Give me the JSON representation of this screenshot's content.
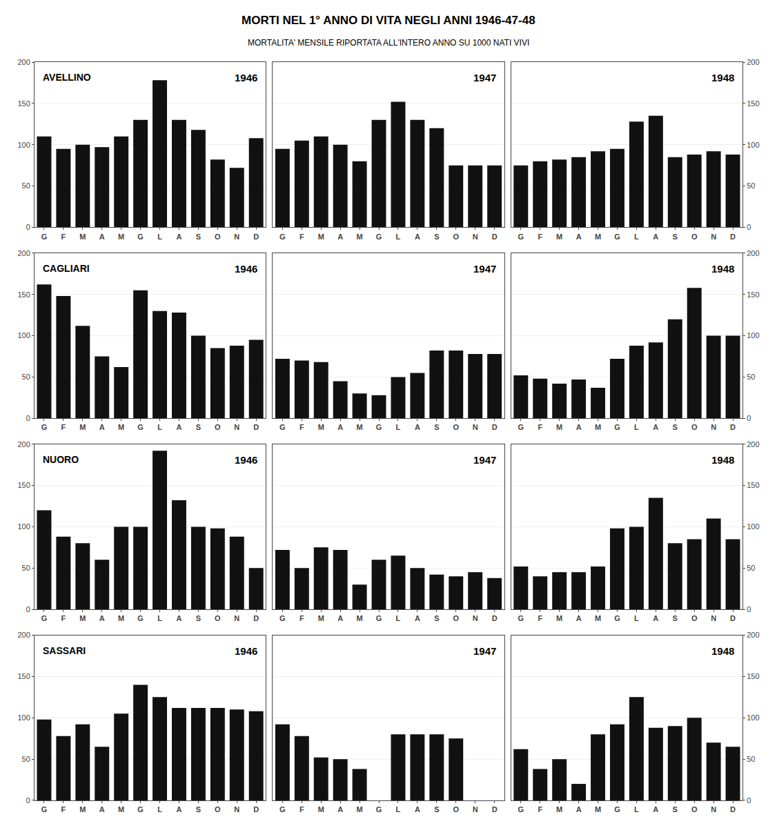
{
  "title": "MORTI NEL 1° ANNO DI VITA NEGLI ANNI 1946-47-48",
  "subtitle": "MORTALITA' MENSILE RIPORTATA ALL'INTERO ANNO SU 1000 NATI VIVI",
  "chart_data": [
    {
      "type": "bar",
      "title": "1946",
      "annotations": [
        "AVELLINO"
      ],
      "categories": [
        "G",
        "F",
        "M",
        "A",
        "M",
        "G",
        "L",
        "A",
        "S",
        "O",
        "N",
        "D"
      ],
      "values": [
        110,
        95,
        100,
        97,
        110,
        130,
        178,
        130,
        118,
        82,
        72,
        108
      ],
      "color": "#111111",
      "ylim": [
        0,
        200
      ],
      "yticks": [
        0,
        50,
        100,
        150,
        200
      ],
      "grid": true
    },
    {
      "type": "bar",
      "title": "1947",
      "categories": [
        "G",
        "F",
        "M",
        "A",
        "M",
        "G",
        "L",
        "A",
        "S",
        "O",
        "N",
        "D"
      ],
      "values": [
        95,
        105,
        110,
        100,
        80,
        130,
        152,
        130,
        120,
        75,
        75,
        75
      ],
      "color": "#111111",
      "ylim": [
        0,
        200
      ],
      "yticks": [
        0,
        50,
        100,
        150,
        200
      ],
      "grid": true,
      "tick_labels": "x"
    },
    {
      "type": "bar",
      "title": "1948",
      "categories": [
        "G",
        "F",
        "M",
        "A",
        "M",
        "G",
        "L",
        "A",
        "S",
        "O",
        "N",
        "D"
      ],
      "values": [
        75,
        80,
        82,
        85,
        92,
        95,
        128,
        135,
        85,
        88,
        92,
        88
      ],
      "color": "#111111",
      "ylim": [
        0,
        200
      ],
      "yticks": [
        0,
        50,
        100,
        150,
        200
      ],
      "grid": true
    },
    {
      "type": "bar",
      "title": "1946",
      "annotations": [
        "CAGLIARI"
      ],
      "categories": [
        "G",
        "F",
        "M",
        "A",
        "M",
        "G",
        "L",
        "A",
        "S",
        "O",
        "N",
        "D"
      ],
      "values": [
        162,
        148,
        112,
        75,
        62,
        155,
        130,
        128,
        100,
        85,
        88,
        95
      ],
      "color": "#111111",
      "ylim": [
        0,
        200
      ],
      "yticks": [
        0,
        50,
        100,
        150,
        200
      ],
      "grid": true
    },
    {
      "type": "bar",
      "title": "1947",
      "categories": [
        "G",
        "F",
        "M",
        "A",
        "M",
        "G",
        "L",
        "A",
        "S",
        "O",
        "N",
        "D"
      ],
      "values": [
        72,
        70,
        68,
        45,
        30,
        28,
        50,
        55,
        82,
        82,
        78,
        78
      ],
      "color": "#111111",
      "ylim": [
        0,
        200
      ],
      "yticks": [
        0,
        50,
        100,
        150,
        200
      ],
      "grid": true,
      "tick_labels": "x"
    },
    {
      "type": "bar",
      "title": "1948",
      "categories": [
        "G",
        "F",
        "M",
        "A",
        "M",
        "G",
        "L",
        "A",
        "S",
        "O",
        "N",
        "D"
      ],
      "values": [
        52,
        48,
        42,
        47,
        37,
        72,
        88,
        92,
        120,
        158,
        100,
        100
      ],
      "color": "#111111",
      "ylim": [
        0,
        200
      ],
      "yticks": [
        0,
        50,
        100,
        150,
        200
      ],
      "grid": true
    },
    {
      "type": "bar",
      "title": "1946",
      "annotations": [
        "NUORO"
      ],
      "categories": [
        "G",
        "F",
        "M",
        "A",
        "M",
        "G",
        "L",
        "A",
        "S",
        "O",
        "N",
        "D"
      ],
      "values": [
        120,
        88,
        80,
        60,
        100,
        100,
        192,
        132,
        100,
        98,
        88,
        50
      ],
      "color": "#111111",
      "ylim": [
        0,
        200
      ],
      "yticks": [
        0,
        50,
        100,
        150,
        200
      ],
      "grid": true
    },
    {
      "type": "bar",
      "title": "1947",
      "categories": [
        "G",
        "F",
        "M",
        "A",
        "M",
        "G",
        "L",
        "A",
        "S",
        "O",
        "N",
        "D"
      ],
      "values": [
        72,
        50,
        75,
        72,
        30,
        60,
        65,
        50,
        42,
        40,
        45,
        38
      ],
      "color": "#111111",
      "ylim": [
        0,
        200
      ],
      "yticks": [
        0,
        50,
        100,
        150,
        200
      ],
      "grid": true,
      "tick_labels": "x"
    },
    {
      "type": "bar",
      "title": "1948",
      "categories": [
        "G",
        "F",
        "M",
        "A",
        "M",
        "G",
        "L",
        "A",
        "S",
        "O",
        "N",
        "D"
      ],
      "values": [
        52,
        40,
        45,
        45,
        52,
        98,
        100,
        135,
        80,
        85,
        110,
        85
      ],
      "color": "#111111",
      "ylim": [
        0,
        200
      ],
      "yticks": [
        0,
        50,
        100,
        150,
        200
      ],
      "grid": true
    },
    {
      "type": "bar",
      "title": "1946",
      "annotations": [
        "SASSARI"
      ],
      "categories": [
        "G",
        "F",
        "M",
        "A",
        "M",
        "G",
        "L",
        "A",
        "S",
        "O",
        "N",
        "D"
      ],
      "values": [
        98,
        78,
        92,
        65,
        105,
        140,
        125,
        112,
        112,
        112,
        110,
        108
      ],
      "color": "#111111",
      "ylim": [
        0,
        200
      ],
      "yticks": [
        0,
        50,
        100,
        150,
        200
      ],
      "grid": true
    },
    {
      "type": "bar",
      "title": "1947",
      "categories": [
        "G",
        "F",
        "M",
        "A",
        "M",
        "G",
        "L",
        "A",
        "S",
        "O",
        "N",
        "D"
      ],
      "values": [
        92,
        78,
        52,
        50,
        38,
        0,
        80,
        80,
        80,
        75,
        0,
        0
      ],
      "color": "#111111",
      "ylim": [
        0,
        200
      ],
      "yticks": [
        0,
        50,
        100,
        150,
        200
      ],
      "grid": true,
      "tick_labels": "x"
    },
    {
      "type": "bar",
      "title": "1948",
      "categories": [
        "G",
        "F",
        "M",
        "A",
        "M",
        "G",
        "L",
        "A",
        "S",
        "O",
        "N",
        "D"
      ],
      "values": [
        62,
        38,
        50,
        20,
        80,
        92,
        125,
        88,
        90,
        100,
        70,
        65
      ],
      "color": "#111111",
      "ylim": [
        0,
        200
      ],
      "yticks": [
        0,
        50,
        100,
        150,
        200
      ],
      "grid": true
    }
  ]
}
